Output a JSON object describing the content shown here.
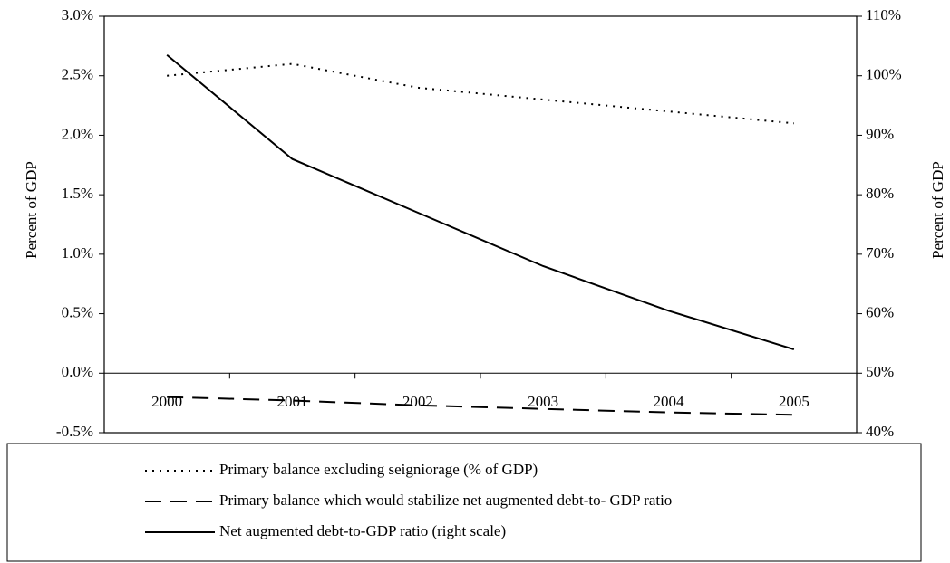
{
  "chart_data": {
    "type": "line",
    "y_label": "Percent of GDP",
    "y2_label": "Percent of GDP",
    "categories": [
      "2000",
      "2001",
      "2002",
      "2003",
      "2004",
      "2005"
    ],
    "ylim": [
      -0.5,
      3.0
    ],
    "yticks": [
      {
        "value": -0.5,
        "label": "-0.5%"
      },
      {
        "value": 0.0,
        "label": "0.0%"
      },
      {
        "value": 0.5,
        "label": "0.5%"
      },
      {
        "value": 1.0,
        "label": "1.0%"
      },
      {
        "value": 1.5,
        "label": "1.5%"
      },
      {
        "value": 2.0,
        "label": "2.0%"
      },
      {
        "value": 2.5,
        "label": "2.5%"
      },
      {
        "value": 3.0,
        "label": "3.0%"
      }
    ],
    "y2lim": [
      40,
      110
    ],
    "y2ticks": [
      {
        "value": 40,
        "label": "40%"
      },
      {
        "value": 50,
        "label": "50%"
      },
      {
        "value": 60,
        "label": "60%"
      },
      {
        "value": 70,
        "label": "70%"
      },
      {
        "value": 80,
        "label": "80%"
      },
      {
        "value": 90,
        "label": "90%"
      },
      {
        "value": 100,
        "label": "100%"
      },
      {
        "value": 110,
        "label": "110%"
      }
    ],
    "series": [
      {
        "name": "Primary balance excluding seigniorage (% of GDP)",
        "color": "#000000",
        "dash": "dotted",
        "values": [
          2.5,
          2.6,
          2.4,
          2.3,
          2.2,
          2.1
        ]
      },
      {
        "name": "Primary balance which would stabilize net augmented debt-to- GDP ratio",
        "color": "#000000",
        "dash": "dashed",
        "values": [
          -0.2,
          -0.23,
          -0.27,
          -0.3,
          -0.33,
          -0.35
        ]
      },
      {
        "name": "Net augmented debt-to-GDP ratio (right scale)",
        "color": "#000000",
        "dash": "solid",
        "axis": "y2",
        "values": [
          103.5,
          86,
          77,
          68,
          60.5,
          54
        ]
      }
    ]
  }
}
